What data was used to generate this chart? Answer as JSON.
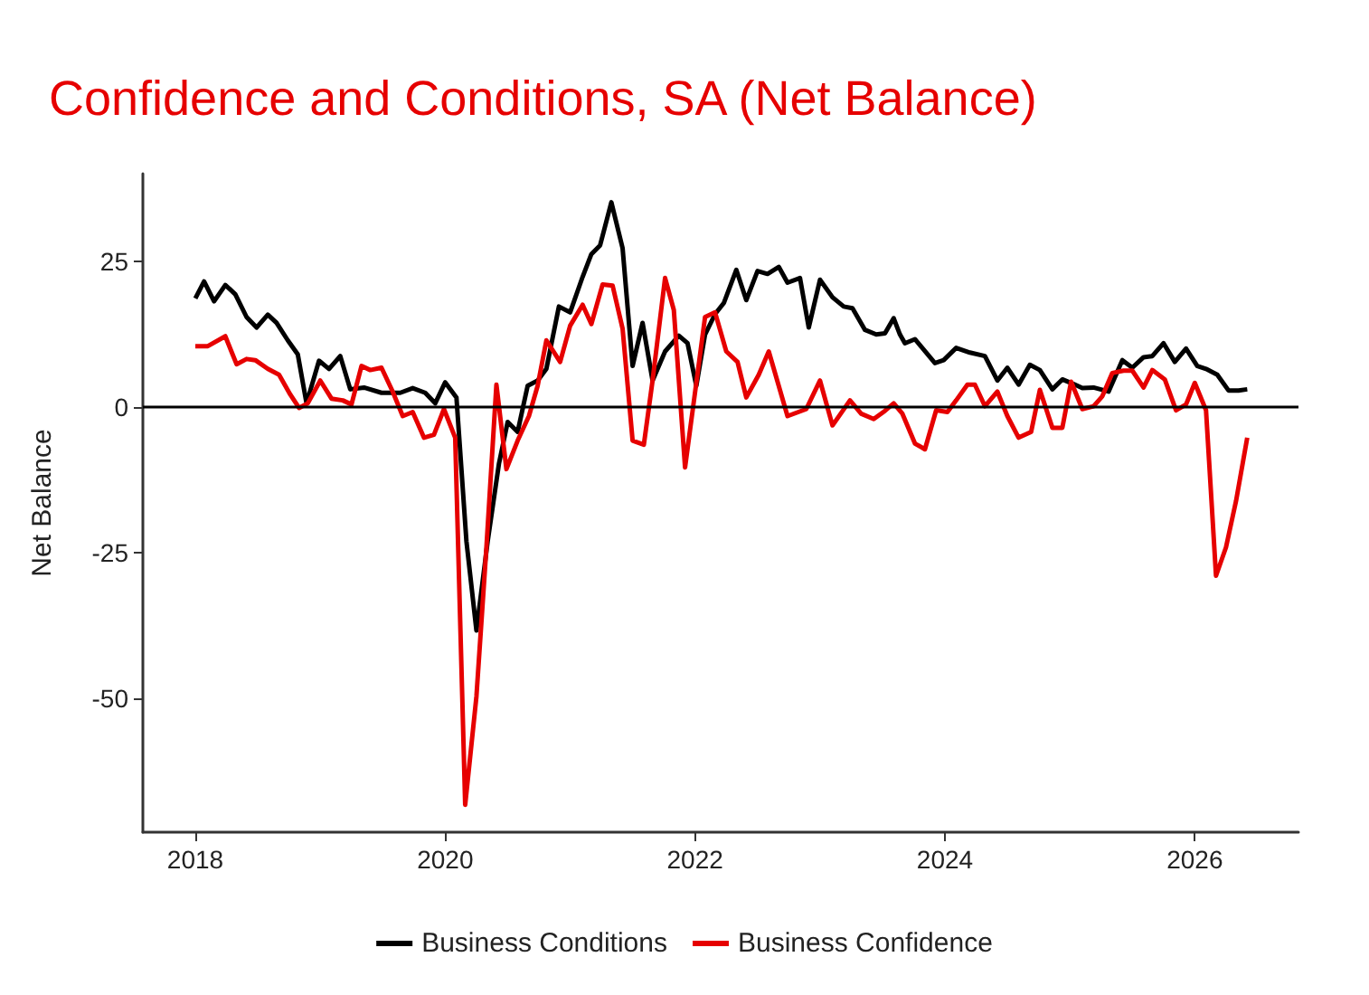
{
  "chart_data": {
    "type": "line",
    "title": "Confidence and Conditions, SA (Net Balance)",
    "ylabel": "Net Balance",
    "xlim": [
      2017.58,
      2026.83
    ],
    "xticks": [
      2018,
      2020,
      2022,
      2024,
      2026
    ],
    "ylim": [
      -73,
      40
    ],
    "yticks": [
      -50,
      -25,
      0,
      25
    ],
    "grid": false,
    "legend": "bottom",
    "marker": "none",
    "line_style": "solid",
    "ref_lines": [
      {
        "axis": "y",
        "value": 0,
        "label": null,
        "color": "#000000"
      }
    ],
    "series": [
      {
        "name": "Business Conditions",
        "color": "#000000",
        "x": [
          2018.0,
          2018.07,
          2018.15,
          2018.24,
          2018.32,
          2018.41,
          2018.49,
          2018.58,
          2018.65,
          2018.74,
          2018.82,
          2018.89,
          2018.99,
          2019.07,
          2019.16,
          2019.24,
          2019.35,
          2019.49,
          2019.64,
          2019.74,
          2019.84,
          2019.92,
          2020.0,
          2020.09,
          2020.17,
          2020.25,
          2020.34,
          2020.43,
          2020.5,
          2020.58,
          2020.66,
          2020.74,
          2020.81,
          2020.91,
          2021.0,
          2021.1,
          2021.17,
          2021.24,
          2021.33,
          2021.42,
          2021.5,
          2021.58,
          2021.66,
          2021.76,
          2021.87,
          2021.94,
          2022.01,
          2022.08,
          2022.16,
          2022.23,
          2022.33,
          2022.41,
          2022.5,
          2022.58,
          2022.67,
          2022.74,
          2022.84,
          2022.91,
          2023.0,
          2023.1,
          2023.19,
          2023.26,
          2023.36,
          2023.45,
          2023.52,
          2023.59,
          2023.64,
          2023.68,
          2023.76,
          2023.92,
          2023.99,
          2024.09,
          2024.2,
          2024.32,
          2024.42,
          2024.5,
          2024.59,
          2024.68,
          2024.76,
          2024.86,
          2024.94,
          2025.03,
          2025.1,
          2025.19,
          2025.31,
          2025.42,
          2025.5,
          2025.59,
          2025.66,
          2025.75,
          2025.84,
          2025.93,
          2026.02,
          2026.09,
          2026.18,
          2026.27,
          2026.35,
          2026.42
        ],
        "values": [
          18.6,
          21.5,
          18.1,
          20.9,
          19.3,
          15.4,
          13.6,
          15.8,
          14.4,
          11.4,
          9.0,
          0.6,
          7.9,
          6.5,
          8.7,
          3.0,
          3.3,
          2.4,
          2.4,
          3.2,
          2.4,
          0.6,
          4.2,
          1.6,
          -23.1,
          -38.4,
          -23.1,
          -9.8,
          -2.6,
          -4.3,
          3.6,
          4.5,
          6.5,
          17.2,
          16.2,
          22.3,
          26.2,
          27.7,
          35.1,
          27.2,
          7.0,
          14.4,
          4.5,
          9.5,
          12.2,
          10.9,
          3.6,
          12.4,
          15.9,
          17.8,
          23.5,
          18.3,
          23.3,
          22.8,
          24.0,
          21.3,
          22.1,
          13.6,
          21.8,
          18.8,
          17.2,
          16.9,
          13.2,
          12.4,
          12.6,
          15.2,
          12.4,
          10.9,
          11.6,
          7.5,
          8.0,
          10.1,
          9.3,
          8.7,
          4.5,
          6.7,
          3.8,
          7.2,
          6.3,
          3.0,
          4.7,
          3.9,
          3.2,
          3.3,
          2.6,
          8.0,
          6.7,
          8.5,
          8.7,
          10.9,
          7.7,
          10.0,
          7.0,
          6.5,
          5.5,
          2.8,
          2.8,
          3.0
        ]
      },
      {
        "name": "Business Confidence",
        "color": "#e60000",
        "x": [
          2018.0,
          2018.1,
          2018.24,
          2018.33,
          2018.41,
          2018.48,
          2018.58,
          2018.67,
          2018.76,
          2018.83,
          2018.9,
          2019.0,
          2019.09,
          2019.18,
          2019.25,
          2019.33,
          2019.4,
          2019.49,
          2019.58,
          2019.66,
          2019.74,
          2019.83,
          2019.91,
          2019.99,
          2020.08,
          2020.16,
          2020.25,
          2020.33,
          2020.41,
          2020.49,
          2020.58,
          2020.67,
          2020.74,
          2020.81,
          2020.92,
          2021.0,
          2021.1,
          2021.17,
          2021.26,
          2021.34,
          2021.42,
          2021.5,
          2021.59,
          2021.66,
          2021.76,
          2021.83,
          2021.92,
          2022.01,
          2022.08,
          2022.16,
          2022.25,
          2022.34,
          2022.41,
          2022.51,
          2022.59,
          2022.74,
          2022.89,
          2023.0,
          2023.1,
          2023.24,
          2023.33,
          2023.43,
          2023.52,
          2023.59,
          2023.66,
          2023.76,
          2023.84,
          2023.93,
          2024.02,
          2024.09,
          2024.18,
          2024.24,
          2024.32,
          2024.42,
          2024.5,
          2024.59,
          2024.69,
          2024.76,
          2024.86,
          2024.94,
          2025.01,
          2025.1,
          2025.19,
          2025.26,
          2025.34,
          2025.43,
          2025.5,
          2025.59,
          2025.66,
          2025.76,
          2025.85,
          2025.93,
          2026.0,
          2026.09,
          2026.17,
          2026.25,
          2026.33,
          2026.42
        ],
        "values": [
          10.4,
          10.4,
          12.1,
          7.3,
          8.2,
          8.0,
          6.5,
          5.5,
          2.1,
          -0.2,
          0.6,
          4.5,
          1.4,
          1.1,
          0.4,
          7.0,
          6.3,
          6.7,
          2.6,
          -1.6,
          -0.9,
          -5.3,
          -4.8,
          -0.4,
          -5.3,
          -68.3,
          -49.7,
          -24.1,
          3.8,
          -10.7,
          -5.8,
          -1.6,
          3.6,
          11.4,
          7.7,
          13.9,
          17.5,
          14.2,
          21.0,
          20.8,
          13.4,
          -5.8,
          -6.5,
          4.5,
          22.1,
          16.6,
          -10.4,
          4.1,
          15.4,
          16.2,
          9.5,
          7.7,
          1.6,
          5.5,
          9.5,
          -1.6,
          -0.4,
          4.5,
          -3.2,
          1.1,
          -1.2,
          -2.1,
          -0.7,
          0.6,
          -1.2,
          -6.3,
          -7.3,
          -0.6,
          -0.9,
          1.1,
          3.8,
          3.8,
          0.1,
          2.6,
          -1.6,
          -5.3,
          -4.3,
          2.9,
          -3.6,
          -3.6,
          4.3,
          -0.4,
          0.1,
          1.8,
          5.8,
          6.2,
          6.2,
          3.3,
          6.3,
          4.7,
          -0.6,
          0.4,
          4.1,
          -0.6,
          -29.0,
          -24.1,
          -16.2,
          -5.3
        ]
      }
    ]
  }
}
